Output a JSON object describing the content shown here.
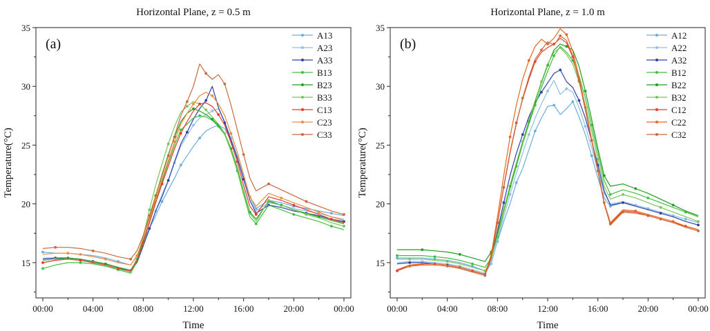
{
  "chart_data": [
    {
      "type": "line",
      "title": "Horizontal Plane, z = 0.5 m",
      "panel_label": "(a)",
      "xlabel": "Time",
      "ylabel": "Temperature(°C)",
      "ylim": [
        12,
        35
      ],
      "yticks": [
        15,
        20,
        25,
        30,
        35
      ],
      "xticks": [
        "00:00",
        "04:00",
        "08:00",
        "12:00",
        "16:00",
        "20:00",
        "00:00"
      ],
      "x_hours": [
        0,
        1,
        2,
        3,
        4,
        5,
        6,
        7,
        7.5,
        8,
        8.5,
        9,
        9.5,
        10,
        10.5,
        11,
        11.5,
        12,
        12.5,
        13,
        13.5,
        14,
        14.5,
        15,
        15.5,
        16,
        16.5,
        17,
        18,
        19,
        20,
        21,
        22,
        23,
        24
      ],
      "legend_position": "top-right",
      "series": [
        {
          "name": "A13",
          "color": "#6aaedb",
          "values": [
            15.9,
            15.8,
            15.8,
            15.7,
            15.6,
            15.4,
            15.1,
            14.8,
            15.6,
            16.8,
            17.9,
            19.0,
            20.2,
            21.2,
            22.2,
            23.3,
            24.1,
            24.9,
            25.6,
            26.2,
            26.5,
            26.7,
            26.4,
            25.4,
            24.0,
            22.3,
            20.6,
            19.6,
            20.3,
            20.1,
            19.8,
            19.6,
            19.4,
            19.2,
            19.0
          ]
        },
        {
          "name": "A23",
          "color": "#8fc0e8",
          "values": [
            15.4,
            15.4,
            15.4,
            15.3,
            15.1,
            14.9,
            14.6,
            14.4,
            15.2,
            16.5,
            17.8,
            19.4,
            20.8,
            22.0,
            23.5,
            24.9,
            25.8,
            26.7,
            27.3,
            27.6,
            27.9,
            28.1,
            27.0,
            25.6,
            24.1,
            22.3,
            20.6,
            19.4,
            20.1,
            19.9,
            19.6,
            19.4,
            19.2,
            18.9,
            18.7
          ]
        },
        {
          "name": "A33",
          "color": "#2e3fa8",
          "values": [
            15.3,
            15.4,
            15.4,
            15.3,
            15.1,
            14.9,
            14.6,
            14.3,
            15.0,
            16.4,
            17.9,
            19.4,
            20.6,
            22.0,
            23.6,
            25.1,
            26.1,
            27.2,
            28.1,
            28.8,
            30.0,
            28.2,
            26.9,
            25.4,
            23.9,
            22.1,
            20.3,
            19.2,
            19.9,
            19.7,
            19.4,
            19.2,
            19.0,
            18.7,
            18.5
          ]
        },
        {
          "name": "B13",
          "color": "#3fbf3f",
          "values": [
            14.5,
            14.8,
            15.0,
            15.0,
            14.9,
            14.7,
            14.4,
            14.1,
            15.1,
            16.6,
            18.4,
            20.2,
            21.9,
            23.5,
            25.0,
            26.3,
            26.8,
            27.3,
            27.5,
            27.4,
            27.1,
            26.6,
            25.9,
            24.5,
            22.8,
            20.8,
            18.9,
            18.3,
            19.9,
            19.5,
            19.1,
            18.8,
            18.5,
            18.1,
            17.8
          ]
        },
        {
          "name": "B23",
          "color": "#1e9e1e",
          "values": [
            15.2,
            15.3,
            15.4,
            15.3,
            15.1,
            14.9,
            14.6,
            14.3,
            15.3,
            16.9,
            18.8,
            20.7,
            22.5,
            24.2,
            25.7,
            27.0,
            27.7,
            28.1,
            27.9,
            27.6,
            27.2,
            26.7,
            26.0,
            24.7,
            23.1,
            21.1,
            19.3,
            18.7,
            20.2,
            19.9,
            19.5,
            19.2,
            18.9,
            18.6,
            18.3
          ]
        },
        {
          "name": "B33",
          "color": "#79c45a",
          "values": [
            15.2,
            15.3,
            15.3,
            15.2,
            15.0,
            14.8,
            14.5,
            14.2,
            15.4,
            17.2,
            19.5,
            21.6,
            23.4,
            25.1,
            26.6,
            27.8,
            28.3,
            28.7,
            28.5,
            28.0,
            27.4,
            26.8,
            26.0,
            24.6,
            23.0,
            21.0,
            19.2,
            18.5,
            20.3,
            19.9,
            19.5,
            19.1,
            18.8,
            18.4,
            18.1
          ]
        },
        {
          "name": "C13",
          "color": "#e83a2a",
          "values": [
            15.0,
            15.2,
            15.3,
            15.2,
            15.0,
            14.8,
            14.5,
            14.3,
            15.2,
            16.7,
            18.4,
            20.1,
            21.7,
            23.2,
            24.7,
            26.0,
            27.0,
            27.9,
            28.5,
            28.6,
            28.3,
            27.6,
            26.7,
            25.2,
            23.6,
            21.6,
            19.8,
            19.1,
            20.6,
            20.3,
            19.9,
            19.5,
            19.1,
            18.7,
            18.4
          ]
        },
        {
          "name": "C23",
          "color": "#f08a3c",
          "values": [
            15.7,
            15.8,
            15.8,
            15.7,
            15.5,
            15.3,
            15.0,
            14.8,
            15.6,
            17.0,
            18.7,
            20.4,
            22.1,
            23.7,
            25.3,
            26.8,
            27.7,
            28.5,
            29.2,
            29.5,
            29.2,
            28.5,
            27.5,
            26.0,
            24.4,
            22.5,
            20.6,
            19.8,
            20.9,
            20.5,
            20.1,
            19.7,
            19.3,
            18.9,
            18.6
          ]
        },
        {
          "name": "C33",
          "color": "#c86a3c",
          "values": [
            16.2,
            16.3,
            16.3,
            16.2,
            16.0,
            15.8,
            15.5,
            15.3,
            16.0,
            17.3,
            19.0,
            20.7,
            22.4,
            24.1,
            25.8,
            27.5,
            28.7,
            30.0,
            31.9,
            31.1,
            30.6,
            31.0,
            30.2,
            28.4,
            26.3,
            24.2,
            22.2,
            21.1,
            21.7,
            21.2,
            20.7,
            20.2,
            19.8,
            19.4,
            19.1
          ]
        }
      ]
    },
    {
      "type": "line",
      "title": "Horizontal Plane, z = 1.0 m",
      "panel_label": "(b)",
      "xlabel": "Time",
      "ylabel": "Temperature(°C)",
      "ylim": [
        12,
        35
      ],
      "yticks": [
        15,
        20,
        25,
        30,
        35
      ],
      "xticks": [
        "00:00",
        "04:00",
        "08:00",
        "12:00",
        "16:00",
        "20:00",
        "00:00"
      ],
      "x_hours": [
        0,
        1,
        2,
        3,
        4,
        5,
        6,
        7,
        7.5,
        8,
        8.5,
        9,
        9.5,
        10,
        10.5,
        11,
        11.5,
        12,
        12.5,
        13,
        13.5,
        14,
        14.5,
        15,
        15.5,
        16,
        16.5,
        17,
        18,
        19,
        20,
        21,
        22,
        23,
        24
      ],
      "legend_position": "top-right",
      "series": [
        {
          "name": "A12",
          "color": "#6aaedb",
          "values": [
            15.4,
            15.4,
            15.4,
            15.3,
            15.2,
            15.0,
            14.7,
            14.3,
            15.0,
            16.8,
            18.5,
            20.0,
            21.8,
            23.0,
            24.6,
            26.2,
            27.3,
            28.3,
            28.4,
            27.6,
            28.1,
            28.7,
            27.4,
            25.9,
            24.1,
            22.2,
            20.5,
            19.8,
            20.1,
            19.9,
            19.6,
            19.3,
            19.0,
            18.7,
            18.4
          ]
        },
        {
          "name": "A22",
          "color": "#8fc0e8",
          "values": [
            15.0,
            15.1,
            15.1,
            15.0,
            14.9,
            14.7,
            14.4,
            14.1,
            14.9,
            16.9,
            18.9,
            20.8,
            22.6,
            24.3,
            25.9,
            27.3,
            28.5,
            29.6,
            30.5,
            29.3,
            29.8,
            29.5,
            28.2,
            26.6,
            24.8,
            22.8,
            20.9,
            20.0,
            20.2,
            19.9,
            19.6,
            19.3,
            19.0,
            18.7,
            18.4
          ]
        },
        {
          "name": "A32",
          "color": "#2e3fa8",
          "values": [
            14.9,
            15.0,
            15.0,
            14.9,
            14.8,
            14.6,
            14.3,
            14.0,
            15.3,
            17.7,
            20.1,
            22.4,
            24.3,
            25.9,
            27.4,
            28.6,
            29.5,
            30.3,
            31.1,
            31.4,
            30.4,
            29.9,
            28.8,
            27.3,
            25.4,
            23.3,
            21.1,
            19.9,
            20.1,
            19.8,
            19.5,
            19.2,
            18.9,
            18.5,
            18.2
          ]
        },
        {
          "name": "B12",
          "color": "#3fbf3f",
          "values": [
            15.6,
            15.6,
            15.6,
            15.5,
            15.4,
            15.2,
            14.9,
            14.6,
            15.4,
            17.2,
            19.3,
            21.3,
            23.2,
            25.1,
            26.8,
            28.4,
            29.9,
            31.3,
            32.6,
            33.4,
            32.9,
            32.2,
            30.9,
            29.0,
            26.7,
            24.3,
            22.0,
            20.8,
            21.2,
            20.9,
            20.5,
            20.1,
            19.7,
            19.3,
            18.9
          ]
        },
        {
          "name": "B22",
          "color": "#1e9e1e",
          "values": [
            16.1,
            16.1,
            16.1,
            16.0,
            15.9,
            15.7,
            15.4,
            15.1,
            15.9,
            17.5,
            19.6,
            21.5,
            23.4,
            25.2,
            27.0,
            28.7,
            30.3,
            31.8,
            33.1,
            33.6,
            33.4,
            33.1,
            31.7,
            29.6,
            27.2,
            24.7,
            22.4,
            21.5,
            21.7,
            21.3,
            20.9,
            20.4,
            19.9,
            19.4,
            19.0
          ]
        },
        {
          "name": "B32",
          "color": "#79c45a",
          "values": [
            15.3,
            15.3,
            15.3,
            15.2,
            15.1,
            14.9,
            14.6,
            14.3,
            15.3,
            17.3,
            19.5,
            21.6,
            23.5,
            25.3,
            27.1,
            28.8,
            30.4,
            31.9,
            32.9,
            33.3,
            32.7,
            31.9,
            30.4,
            28.4,
            26.2,
            23.8,
            21.5,
            20.4,
            20.8,
            20.5,
            20.1,
            19.7,
            19.3,
            18.9,
            18.5
          ]
        },
        {
          "name": "C12",
          "color": "#e83a2a",
          "values": [
            14.3,
            14.7,
            14.9,
            14.9,
            14.8,
            14.6,
            14.3,
            14.0,
            15.5,
            18.4,
            21.5,
            24.4,
            26.9,
            28.9,
            30.6,
            32.1,
            32.9,
            33.3,
            33.6,
            34.1,
            33.7,
            32.5,
            30.5,
            28.0,
            25.4,
            22.8,
            20.0,
            18.3,
            19.4,
            19.3,
            19.0,
            18.7,
            18.4,
            18.1,
            17.8
          ]
        },
        {
          "name": "C22",
          "color": "#e8661e",
          "values": [
            14.4,
            14.8,
            14.9,
            14.9,
            14.8,
            14.6,
            14.3,
            14.0,
            15.7,
            18.9,
            22.4,
            25.7,
            28.4,
            30.6,
            32.2,
            33.4,
            34.0,
            33.6,
            34.1,
            34.9,
            34.4,
            33.0,
            30.8,
            28.2,
            25.5,
            22.9,
            20.1,
            18.4,
            19.5,
            19.4,
            19.1,
            18.8,
            18.5,
            18.1,
            17.8
          ]
        },
        {
          "name": "C32",
          "color": "#c86a3c",
          "values": [
            14.4,
            14.7,
            14.8,
            14.8,
            14.7,
            14.5,
            14.2,
            13.9,
            15.4,
            18.3,
            21.4,
            24.3,
            26.8,
            29.0,
            30.8,
            32.3,
            33.1,
            33.8,
            33.5,
            34.3,
            33.9,
            32.6,
            30.5,
            28.0,
            25.4,
            22.8,
            20.0,
            18.2,
            19.3,
            19.2,
            19.0,
            18.7,
            18.4,
            18.0,
            17.7
          ]
        }
      ]
    }
  ]
}
